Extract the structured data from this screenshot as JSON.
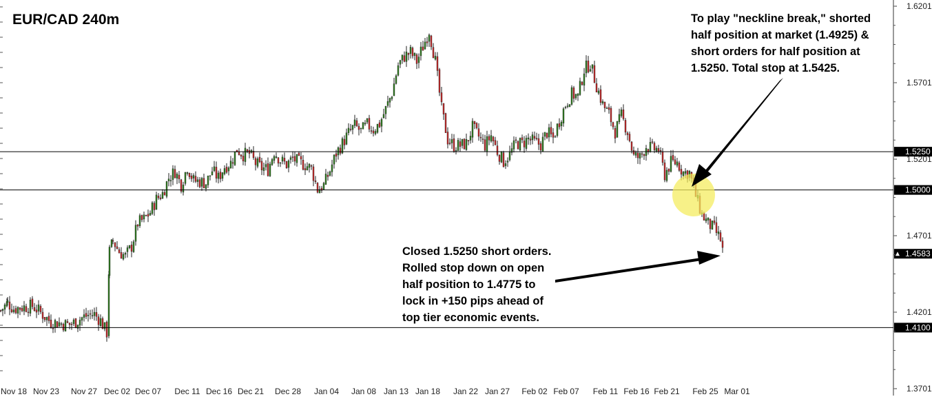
{
  "chart_data": {
    "type": "candlestick",
    "title": "EUR/CAD 240m",
    "ylim": [
      1.3701,
      1.6201
    ],
    "yticks": [
      "1.6201",
      "1.5701",
      "1.5201",
      "1.4701",
      "1.4201",
      "1.3701"
    ],
    "xticks": [
      "Nov 18",
      "Nov 23",
      "Nov 27",
      "Dec 02",
      "Dec 07",
      "Dec 11",
      "Dec 16",
      "Dec 21",
      "Dec 28",
      "Jan 04",
      "Jan 08",
      "Jan 13",
      "Jan 18",
      "Jan 22",
      "Jan 27",
      "Feb 02",
      "Feb 07",
      "Feb 11",
      "Feb 16",
      "Feb 21",
      "Feb 25",
      "Mar 01"
    ],
    "grid": false,
    "levels": [
      {
        "value": 1.525,
        "label": "1.5250"
      },
      {
        "value": 1.5,
        "label": "1.5000"
      },
      {
        "value": 1.41,
        "label": "1.4100"
      }
    ],
    "current_price": {
      "value": 1.4583,
      "label": "1.4583"
    },
    "up_color": "#2e7d1e",
    "down_color": "#c62828",
    "highlight_color": "#f4ec5a",
    "price_path": [
      [
        0,
        1.4211
      ],
      [
        10,
        1.4262
      ],
      [
        19,
        1.4223
      ],
      [
        28,
        1.4232
      ],
      [
        37,
        1.4236
      ],
      [
        46,
        1.4242
      ],
      [
        55,
        1.4211
      ],
      [
        64,
        1.4172
      ],
      [
        73,
        1.4137
      ],
      [
        82,
        1.4133
      ],
      [
        91,
        1.4123
      ],
      [
        100,
        1.4121
      ],
      [
        109,
        1.4137
      ],
      [
        118,
        1.4164
      ],
      [
        127,
        1.4182
      ],
      [
        136,
        1.4187
      ],
      [
        145,
        1.4145
      ],
      [
        154,
        1.4066
      ],
      [
        158,
        1.4597
      ],
      [
        163,
        1.4667
      ],
      [
        172,
        1.4596
      ],
      [
        181,
        1.4566
      ],
      [
        190,
        1.4631
      ],
      [
        199,
        1.4783
      ],
      [
        208,
        1.4808
      ],
      [
        217,
        1.4853
      ],
      [
        226,
        1.4939
      ],
      [
        235,
        1.4977
      ],
      [
        244,
        1.5078
      ],
      [
        253,
        1.5122
      ],
      [
        262,
        1.5034
      ],
      [
        271,
        1.5151
      ],
      [
        280,
        1.506
      ],
      [
        289,
        1.5055
      ],
      [
        298,
        1.5045
      ],
      [
        307,
        1.5126
      ],
      [
        316,
        1.5078
      ],
      [
        325,
        1.5151
      ],
      [
        334,
        1.5177
      ],
      [
        343,
        1.5266
      ],
      [
        352,
        1.5231
      ],
      [
        361,
        1.5237
      ],
      [
        370,
        1.5174
      ],
      [
        379,
        1.5144
      ],
      [
        388,
        1.5133
      ],
      [
        397,
        1.5251
      ],
      [
        406,
        1.5194
      ],
      [
        415,
        1.5166
      ],
      [
        424,
        1.5205
      ],
      [
        433,
        1.5181
      ],
      [
        442,
        1.5164
      ],
      [
        451,
        1.514
      ],
      [
        460,
        1.5003
      ],
      [
        469,
        1.503
      ],
      [
        478,
        1.5126
      ],
      [
        487,
        1.524
      ],
      [
        496,
        1.5303
      ],
      [
        505,
        1.5372
      ],
      [
        514,
        1.542
      ],
      [
        523,
        1.5383
      ],
      [
        532,
        1.5426
      ],
      [
        541,
        1.5395
      ],
      [
        550,
        1.5432
      ],
      [
        559,
        1.5528
      ],
      [
        568,
        1.5632
      ],
      [
        577,
        1.5815
      ],
      [
        586,
        1.5872
      ],
      [
        595,
        1.59
      ],
      [
        604,
        1.5839
      ],
      [
        613,
        1.5936
      ],
      [
        622,
        1.6041
      ],
      [
        631,
        1.584
      ],
      [
        640,
        1.5531
      ],
      [
        649,
        1.5329
      ],
      [
        658,
        1.5289
      ],
      [
        667,
        1.5291
      ],
      [
        676,
        1.5302
      ],
      [
        685,
        1.5408
      ],
      [
        694,
        1.5349
      ],
      [
        703,
        1.5291
      ],
      [
        712,
        1.5356
      ],
      [
        721,
        1.5251
      ],
      [
        730,
        1.5185
      ],
      [
        739,
        1.5232
      ],
      [
        748,
        1.5307
      ],
      [
        757,
        1.5303
      ],
      [
        766,
        1.5334
      ],
      [
        775,
        1.5311
      ],
      [
        784,
        1.5297
      ],
      [
        793,
        1.5377
      ],
      [
        802,
        1.5339
      ],
      [
        811,
        1.5451
      ],
      [
        820,
        1.5558
      ],
      [
        829,
        1.5626
      ],
      [
        838,
        1.561
      ],
      [
        847,
        1.5787
      ],
      [
        856,
        1.5826
      ],
      [
        865,
        1.5681
      ],
      [
        874,
        1.5558
      ],
      [
        883,
        1.5495
      ],
      [
        892,
        1.5381
      ],
      [
        901,
        1.5485
      ],
      [
        910,
        1.5382
      ],
      [
        919,
        1.5219
      ],
      [
        928,
        1.5212
      ],
      [
        937,
        1.5285
      ],
      [
        946,
        1.5271
      ],
      [
        955,
        1.5264
      ],
      [
        964,
        1.51
      ],
      [
        973,
        1.5179
      ],
      [
        982,
        1.518
      ],
      [
        991,
        1.5114
      ],
      [
        1000,
        1.5113
      ],
      [
        1009,
        1.4963
      ],
      [
        1018,
        1.4838
      ],
      [
        1027,
        1.478
      ],
      [
        1036,
        1.4744
      ],
      [
        1045,
        1.4674
      ],
      [
        1049,
        1.4583
      ]
    ]
  },
  "annotations": {
    "top_right": [
      "To play \"neckline break,\" shorted",
      "half position at market (1.4925) &",
      "short orders for half position at",
      "1.5250. Total stop at 1.5425."
    ],
    "bottom": [
      "Closed 1.5250 short orders.",
      "Rolled stop down on open",
      "half position to 1.4775 to",
      "lock in +150 pips ahead of",
      "top tier economic events."
    ]
  }
}
